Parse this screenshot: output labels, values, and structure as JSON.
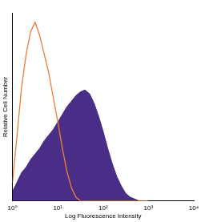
{
  "chart_data": {
    "type": "line",
    "x_label": "Log Fluorescence Intensity",
    "y_label": "Relative Cell Number",
    "x": [
      1,
      1.26,
      1.58,
      2,
      2.51,
      3.16,
      3.98,
      5.01,
      6.31,
      7.94,
      10,
      12.6,
      15.8,
      20,
      25.1,
      31.6,
      39.8,
      50.1,
      63.1,
      79.4,
      100,
      126,
      158,
      200,
      251,
      316,
      398,
      501,
      631,
      794,
      1000
    ],
    "series": [
      {
        "type": "line",
        "color": "#f47a38",
        "values": [
          10,
          35,
          60,
          78,
          90,
          95,
          88,
          78,
          68,
          55,
          42,
          28,
          16,
          7,
          2,
          0,
          0,
          0,
          0,
          0,
          0,
          0,
          0,
          0,
          0,
          0,
          0,
          0,
          0,
          0,
          0
        ]
      },
      {
        "type": "area",
        "color": "#4a2d86",
        "values": [
          5,
          10,
          15,
          18,
          22,
          25,
          28,
          32,
          35,
          38,
          42,
          46,
          50,
          53,
          56,
          58,
          59,
          57,
          52,
          45,
          37,
          28,
          20,
          13,
          8,
          4,
          2,
          1,
          0,
          0,
          0
        ]
      }
    ],
    "log": "x",
    "xlim": [
      1,
      10000
    ],
    "xticks": [
      {
        "value": 1,
        "label": "10⁰"
      },
      {
        "value": 10,
        "label": "10¹"
      },
      {
        "value": 100,
        "label": "10²"
      },
      {
        "value": 1000,
        "label": "10³"
      },
      {
        "value": 10000,
        "label": "10⁴"
      }
    ],
    "ylim": [
      0,
      100
    ],
    "grid": false,
    "tick_labels": "x"
  }
}
